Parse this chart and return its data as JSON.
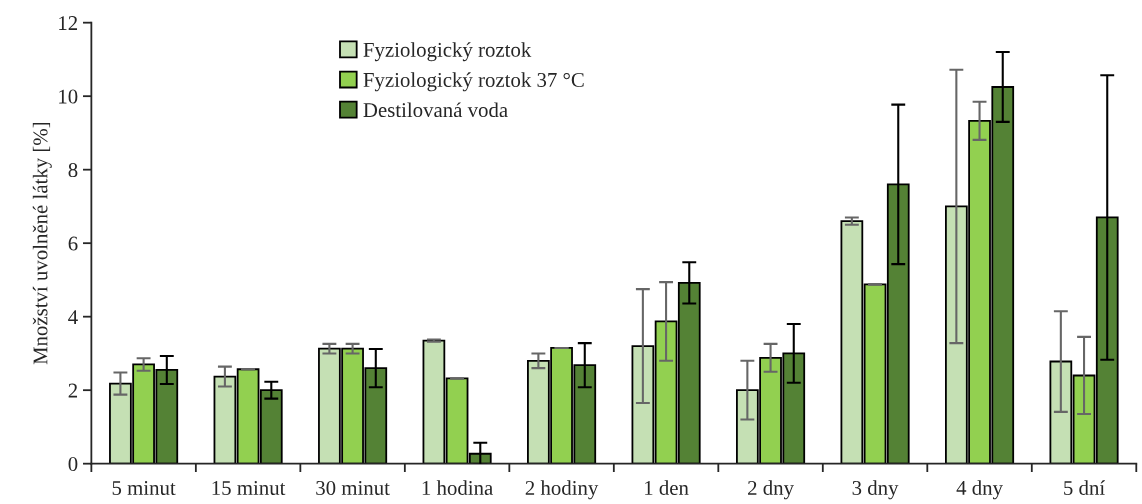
{
  "chart_data": {
    "type": "bar",
    "ylabel": "Množství uvolněné látky [%]",
    "categories": [
      "5 minut",
      "15 minut",
      "30 minut",
      "1 hodina",
      "2 hodiny",
      "1 den",
      "2 dny",
      "3 dny",
      "4 dny",
      "5 dní"
    ],
    "series": [
      {
        "name": "Fyziologický roztok",
        "color": "#c5e0b4",
        "values": [
          2.18,
          2.37,
          3.13,
          3.35,
          2.8,
          3.2,
          2.0,
          6.6,
          7.0,
          2.78
        ],
        "errors": [
          0.3,
          0.27,
          0.13,
          0.03,
          0.2,
          1.55,
          0.8,
          0.1,
          3.72,
          1.37
        ]
      },
      {
        "name": "Fyziologický roztok 37 °C",
        "color": "#92d050",
        "values": [
          2.7,
          2.57,
          3.13,
          2.32,
          3.15,
          3.87,
          2.88,
          4.88,
          9.33,
          2.4
        ],
        "errors": [
          0.17,
          0,
          0.13,
          0,
          0,
          1.07,
          0.38,
          0,
          0.52,
          1.05
        ]
      },
      {
        "name": "Destilovaná voda",
        "color": "#548235",
        "values": [
          2.55,
          2.0,
          2.6,
          0.27,
          2.68,
          4.92,
          3.0,
          7.6,
          10.25,
          6.7
        ],
        "errors": [
          0.38,
          0.23,
          0.52,
          0.3,
          0.6,
          0.56,
          0.8,
          2.17,
          0.95,
          3.87
        ]
      }
    ],
    "ylim": [
      0,
      12
    ],
    "yticks": [
      0,
      2,
      4,
      6,
      8,
      10,
      12
    ],
    "grid": false,
    "legend": "top"
  }
}
